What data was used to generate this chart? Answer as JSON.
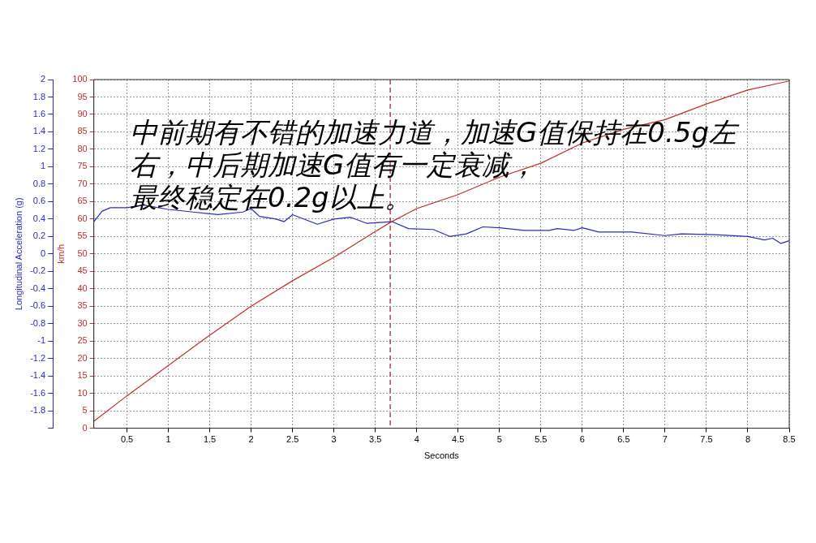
{
  "chart_data": {
    "type": "line",
    "xlabel": "Seconds",
    "ylabel": "km/h",
    "y2label": "Longitudinal Acceleration (g)",
    "annotations": [
      "中前期有不错的加速力道，加速G值保持在0.5g左",
      "右，中后期加速G值有一定衰减，",
      "最终稳定在0.2g以上。"
    ],
    "xlim": [
      0.1,
      8.5
    ],
    "xticks": [
      0.5,
      1,
      1.5,
      2,
      2.5,
      3,
      3.5,
      4,
      4.5,
      5,
      5.5,
      6,
      6.5,
      7,
      7.5,
      8,
      8.5
    ],
    "ylim": [
      0,
      100
    ],
    "yticks": [
      0,
      5,
      10,
      15,
      20,
      25,
      30,
      35,
      40,
      45,
      50,
      55,
      60,
      65,
      70,
      75,
      80,
      85,
      90,
      95,
      100
    ],
    "y2lim": [
      -2,
      2
    ],
    "y2ticks": [
      {
        "value": -2,
        "label": null
      },
      -1.8,
      -1.6,
      -1.4,
      -1.2,
      -1,
      -0.8,
      -0.6,
      -0.4,
      -0.2,
      0,
      0.2,
      0.4,
      0.6,
      0.8,
      1,
      1.2,
      1.4,
      1.6,
      1.8,
      2
    ],
    "grid": true,
    "legend": false,
    "marker": "none",
    "line_style": "solid",
    "ref_lines": [
      {
        "axis": "x",
        "value": 3.68,
        "color": "#8b1a3a",
        "line_style": "dashed"
      }
    ],
    "series": [
      {
        "color": "#c0302a",
        "x": [
          0.1,
          0.5,
          1,
          1.5,
          2,
          2.5,
          3,
          3.5,
          3.68,
          4,
          4.5,
          5,
          5.5,
          6,
          6.5,
          7,
          7.5,
          8,
          8.5
        ],
        "values": [
          2,
          9.3,
          18,
          26.7,
          35,
          42.3,
          49,
          56.4,
          59,
          63,
          67,
          72,
          76,
          81.8,
          85.7,
          88.5,
          93,
          97,
          99.6
        ]
      },
      {
        "color": "#2a2ac0",
        "axis": "y2",
        "x": [
          0.1,
          0.2,
          0.3,
          0.5,
          0.7,
          1,
          1.3,
          1.6,
          1.9,
          2,
          2.1,
          2.3,
          2.4,
          2.5,
          2.8,
          3,
          3.2,
          3.4,
          3.7,
          3.9,
          4.2,
          4.4,
          4.6,
          4.8,
          5,
          5.3,
          5.6,
          5.7,
          5.9,
          6,
          6.2,
          6.6,
          7,
          7.2,
          7.6,
          8,
          8.2,
          8.3,
          8.4,
          8.5
        ],
        "values": [
          0.37,
          0.49,
          0.53,
          0.53,
          0.56,
          0.51,
          0.48,
          0.45,
          0.48,
          0.52,
          0.43,
          0.4,
          0.37,
          0.45,
          0.34,
          0.4,
          0.42,
          0.35,
          0.37,
          0.29,
          0.28,
          0.2,
          0.23,
          0.31,
          0.3,
          0.27,
          0.27,
          0.29,
          0.27,
          0.3,
          0.25,
          0.25,
          0.21,
          0.23,
          0.22,
          0.2,
          0.16,
          0.18,
          0.12,
          0.15
        ]
      }
    ]
  }
}
